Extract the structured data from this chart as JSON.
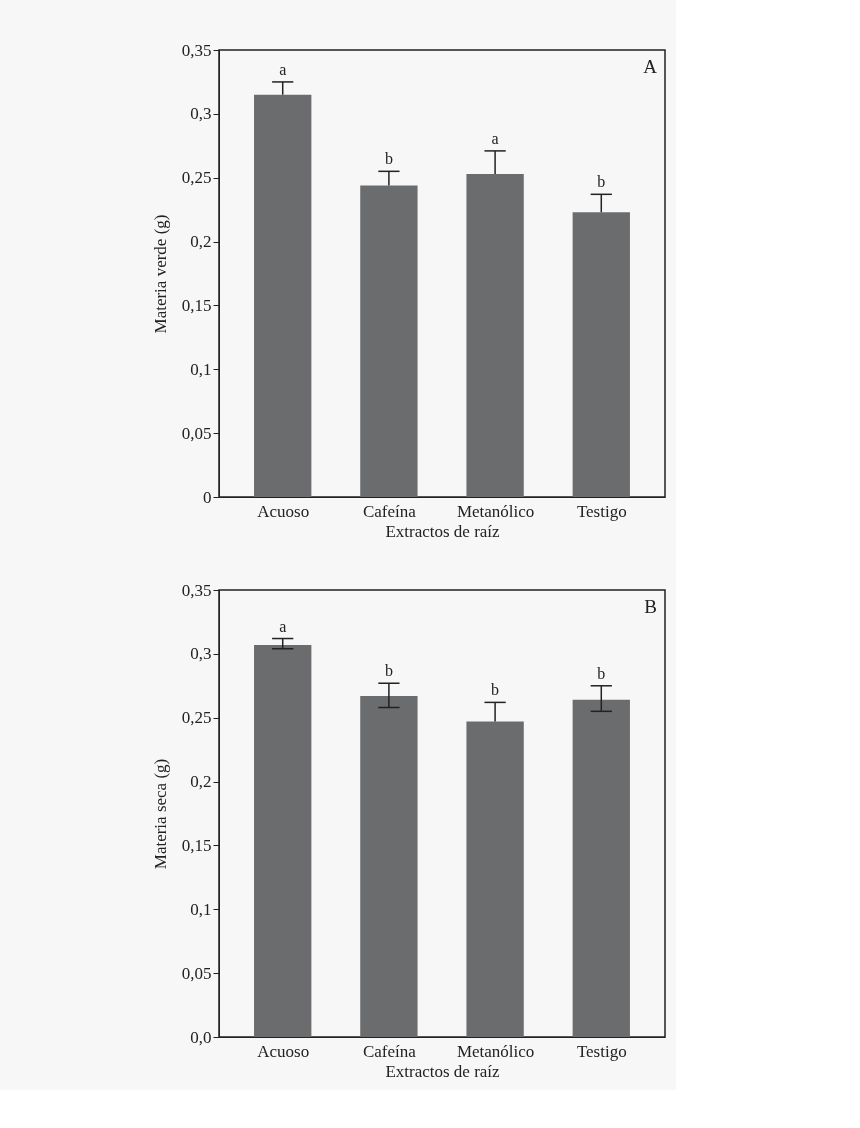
{
  "chart_data": [
    {
      "type": "bar",
      "categories": [
        "Acuoso",
        "Cafeína",
        "Metanólico",
        "Testigo"
      ],
      "series": [
        {
          "color": "#6b6c6e",
          "values": [
            0.315,
            0.244,
            0.253,
            0.223
          ],
          "errors": [
            [
              0.315,
              0.325
            ],
            [
              0.244,
              0.255
            ],
            [
              0.253,
              0.271
            ],
            [
              0.223,
              0.237
            ]
          ]
        }
      ],
      "xlabel": "Extractos de raíz",
      "ylabel": "Materia verde (g)",
      "ylim": [
        0,
        0.35
      ],
      "yticks": [
        {
          "value": 0,
          "label": "0"
        },
        {
          "value": 0.05,
          "label": "0,05"
        },
        {
          "value": 0.1,
          "label": "0,1"
        },
        {
          "value": 0.15,
          "label": "0,15"
        },
        {
          "value": 0.2,
          "label": "0,2"
        },
        {
          "value": 0.25,
          "label": "0,25"
        },
        {
          "value": 0.3,
          "label": "0,3"
        },
        {
          "value": 0.35,
          "label": "0,35"
        }
      ],
      "grid": false,
      "annotations": [
        "A",
        {
          "text": "a",
          "x": "Acuoso",
          "y": 0.325
        },
        {
          "text": "b",
          "x": "Cafeína",
          "y": 0.255
        },
        {
          "text": "a",
          "x": "Metanólico",
          "y": 0.271
        },
        {
          "text": "b",
          "x": "Testigo",
          "y": 0.237
        }
      ]
    },
    {
      "type": "bar",
      "categories": [
        "Acuoso",
        "Cafeína",
        "Metanólico",
        "Testigo"
      ],
      "series": [
        {
          "color": "#6b6c6e",
          "values": [
            0.307,
            0.267,
            0.247,
            0.264
          ],
          "errors": [
            [
              0.304,
              0.312
            ],
            [
              0.258,
              0.277
            ],
            [
              0.247,
              0.262
            ],
            [
              0.255,
              0.275
            ]
          ]
        }
      ],
      "xlabel": "Extractos de raíz",
      "ylabel": "Materia seca (g)",
      "ylim": [
        0,
        0.35
      ],
      "yticks": [
        {
          "value": 0,
          "label": "0,0"
        },
        {
          "value": 0.05,
          "label": "0,05"
        },
        {
          "value": 0.1,
          "label": "0,1"
        },
        {
          "value": 0.15,
          "label": "0,15"
        },
        {
          "value": 0.2,
          "label": "0,2"
        },
        {
          "value": 0.25,
          "label": "0,25"
        },
        {
          "value": 0.3,
          "label": "0,3"
        },
        {
          "value": 0.35,
          "label": "0,35"
        }
      ],
      "grid": false,
      "annotations": [
        "B",
        {
          "text": "a",
          "x": "Acuoso",
          "y": 0.312
        },
        {
          "text": "b",
          "x": "Cafeína",
          "y": 0.277
        },
        {
          "text": "b",
          "x": "Metanólico",
          "y": 0.262
        },
        {
          "text": "b",
          "x": "Testigo",
          "y": 0.275
        }
      ]
    }
  ]
}
